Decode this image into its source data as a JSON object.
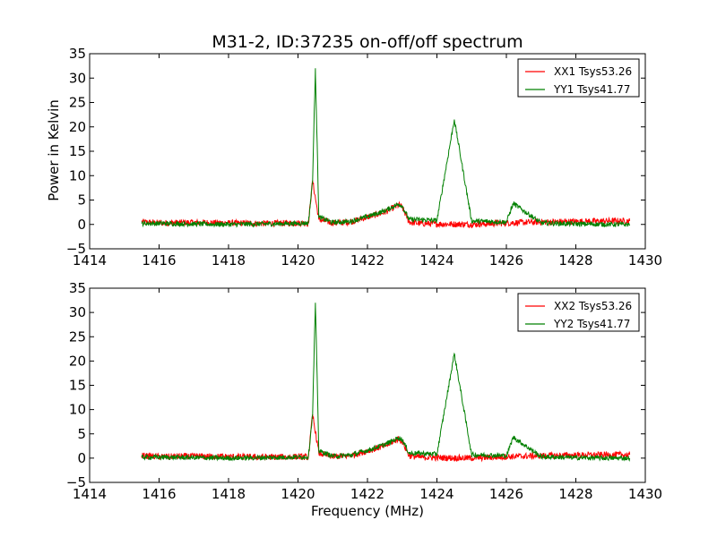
{
  "figure": {
    "title": "M31-2, ID:37235 on-off/off spectrum",
    "xlabel": "Frequency (MHz)",
    "ylabel": "Power in Kelvin",
    "colors": {
      "XX": "#ff0000",
      "YY": "#008000",
      "axes": "#000000",
      "background": "#ffffff"
    }
  },
  "chart_data": [
    {
      "type": "line",
      "title": "M31-2, ID:37235 on-off/off spectrum",
      "xlabel": "",
      "ylabel": "Power in Kelvin",
      "xlim": [
        1414,
        1430
      ],
      "ylim": [
        -5,
        35
      ],
      "xticks": [
        "1414",
        "1416",
        "1418",
        "1420",
        "1422",
        "1424",
        "1426",
        "1428",
        "1430"
      ],
      "yticks": [
        "−5",
        "0",
        "5",
        "10",
        "15",
        "20",
        "25",
        "30",
        "35"
      ],
      "grid": false,
      "legend": "top-right",
      "series": [
        {
          "name": "XX1 Tsys53.26",
          "color": "#ff0000",
          "x": [
            1415.5,
            1416.0,
            1417.0,
            1418.0,
            1419.0,
            1420.0,
            1420.3,
            1420.42,
            1420.6,
            1421.0,
            1421.5,
            1422.0,
            1422.5,
            1422.9,
            1423.0,
            1423.2,
            1423.5,
            1424.0,
            1425.0,
            1426.0,
            1427.0,
            1428.0,
            1429.0,
            1429.55
          ],
          "y": [
            0.5,
            0.3,
            0.4,
            0.3,
            0.2,
            0.3,
            0.2,
            9.0,
            1.0,
            0.3,
            0.5,
            1.5,
            2.5,
            4.0,
            3.5,
            0.5,
            0.2,
            0.1,
            0.0,
            0.3,
            0.5,
            0.6,
            0.7,
            0.7
          ]
        },
        {
          "name": "YY1 Tsys41.77",
          "color": "#008000",
          "x": [
            1415.5,
            1416.0,
            1417.0,
            1418.0,
            1419.0,
            1420.0,
            1420.3,
            1420.42,
            1420.5,
            1420.6,
            1421.0,
            1421.5,
            1422.0,
            1422.5,
            1422.9,
            1423.0,
            1423.2,
            1423.5,
            1424.0,
            1424.5,
            1425.0,
            1426.0,
            1426.2,
            1427.0,
            1428.0,
            1429.0,
            1429.55
          ],
          "y": [
            0.2,
            0.2,
            0.1,
            0.0,
            0.1,
            0.2,
            0.3,
            9.0,
            32.0,
            1.5,
            0.4,
            0.6,
            1.6,
            2.8,
            4.2,
            3.8,
            1.0,
            1.0,
            0.8,
            21.5,
            0.7,
            0.5,
            4.3,
            0.3,
            0.1,
            0.0,
            0.0
          ]
        }
      ]
    },
    {
      "type": "line",
      "title": "",
      "xlabel": "Frequency (MHz)",
      "ylabel": "",
      "xlim": [
        1414,
        1430
      ],
      "ylim": [
        -5,
        35
      ],
      "xticks": [
        "1414",
        "1416",
        "1418",
        "1420",
        "1422",
        "1424",
        "1426",
        "1428",
        "1430"
      ],
      "yticks": [
        "−5",
        "0",
        "5",
        "10",
        "15",
        "20",
        "25",
        "30",
        "35"
      ],
      "grid": false,
      "legend": "top-right",
      "series": [
        {
          "name": "XX2 Tsys53.26",
          "color": "#ff0000",
          "x": [
            1415.5,
            1416.0,
            1417.0,
            1418.0,
            1419.0,
            1420.0,
            1420.3,
            1420.42,
            1420.6,
            1421.0,
            1421.5,
            1422.0,
            1422.5,
            1422.9,
            1423.0,
            1423.2,
            1423.5,
            1424.0,
            1425.0,
            1426.0,
            1427.0,
            1428.0,
            1429.0,
            1429.55
          ],
          "y": [
            0.5,
            0.3,
            0.4,
            0.3,
            0.2,
            0.3,
            0.2,
            9.0,
            1.0,
            0.3,
            0.5,
            1.5,
            2.5,
            4.0,
            3.5,
            0.5,
            0.2,
            0.1,
            0.0,
            0.3,
            0.5,
            0.6,
            0.7,
            0.7
          ]
        },
        {
          "name": "YY2 Tsys41.77",
          "color": "#008000",
          "x": [
            1415.5,
            1416.0,
            1417.0,
            1418.0,
            1419.0,
            1420.0,
            1420.3,
            1420.42,
            1420.5,
            1420.6,
            1421.0,
            1421.5,
            1422.0,
            1422.5,
            1422.9,
            1423.0,
            1423.2,
            1423.5,
            1424.0,
            1424.5,
            1425.0,
            1426.0,
            1426.2,
            1427.0,
            1428.0,
            1429.0,
            1429.55
          ],
          "y": [
            0.2,
            0.2,
            0.1,
            0.0,
            0.1,
            0.2,
            0.3,
            9.0,
            32.0,
            1.5,
            0.4,
            0.6,
            1.6,
            2.8,
            4.2,
            3.8,
            1.0,
            1.0,
            0.8,
            21.5,
            0.7,
            0.5,
            4.3,
            0.3,
            0.1,
            0.0,
            0.0
          ]
        }
      ]
    }
  ]
}
